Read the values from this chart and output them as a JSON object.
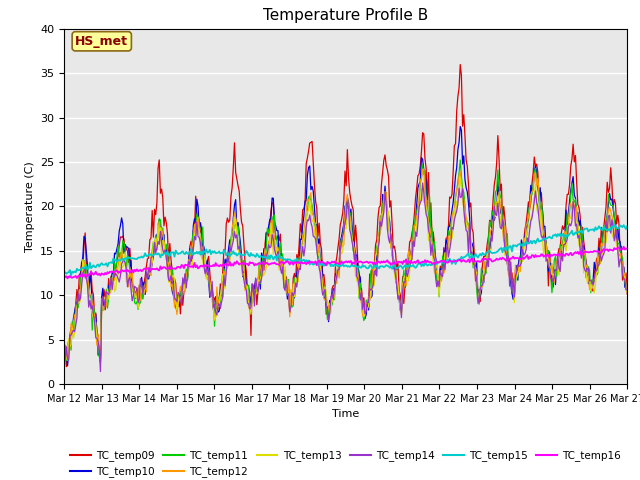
{
  "title": "Temperature Profile B",
  "xlabel": "Time",
  "ylabel": "Temperature (C)",
  "annotation": "HS_met",
  "ylim": [
    0,
    40
  ],
  "background_color": "#e8e8e8",
  "series_colors": {
    "TC_temp09": "#dd0000",
    "TC_temp10": "#0000dd",
    "TC_temp11": "#00cc00",
    "TC_temp12": "#ff9900",
    "TC_temp13": "#dddd00",
    "TC_temp14": "#9933cc",
    "TC_temp15": "#00cccc",
    "TC_temp16": "#ff00ff"
  },
  "xtick_labels": [
    "Mar 12",
    "Mar 13",
    "Mar 14",
    "Mar 15",
    "Mar 16",
    "Mar 17",
    "Mar 18",
    "Mar 19",
    "Mar 20",
    "Mar 21",
    "Mar 22",
    "Mar 23",
    "Mar 24",
    "Mar 25",
    "Mar 26",
    "Mar 27"
  ],
  "ytick_values": [
    0,
    5,
    10,
    15,
    20,
    25,
    30,
    35,
    40
  ],
  "n_points": 480,
  "n_days": 15
}
